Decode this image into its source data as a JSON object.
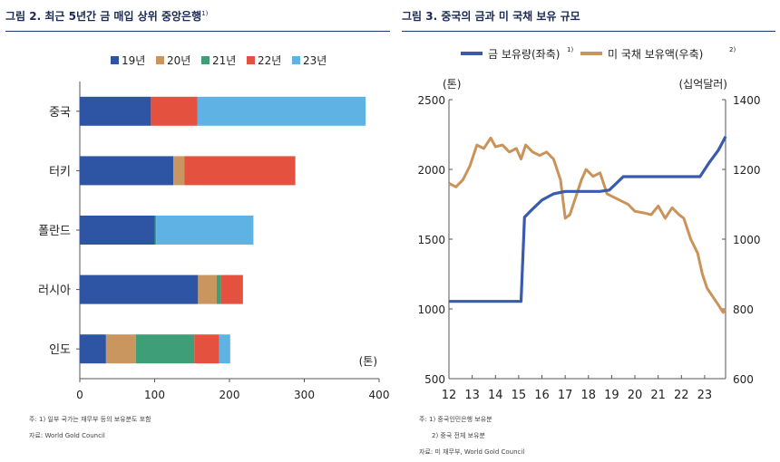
{
  "colors": {
    "bar_series": [
      "#2e55a3",
      "#c8965e",
      "#3e9e78",
      "#e4513f",
      "#5eb3e4"
    ],
    "gold_line": "#3a5ab0",
    "treasury_line": "#c9935a",
    "title": "#1a2a55"
  },
  "left": {
    "title": "그림 2. 최근 5년간 금 매입 상위 중앙은행",
    "title_sup": "1)",
    "unit": "(톤)",
    "notes": [
      "주: 1) 일부 국가는 재무부 등의 보유분도 포함",
      "자료: World Gold Council"
    ]
  },
  "right": {
    "title": "그림 3. 중국의 금과 미 국채 보유 규모",
    "left_unit": "(톤)",
    "right_unit": "(십억달러)",
    "notes": [
      "주: 1) 중국인민은행 보유분",
      "2) 중국 전체 보유분",
      "자료: 미 재무부, World Gold Council"
    ]
  },
  "chart_data": [
    {
      "type": "bar",
      "orientation": "horizontal",
      "stacked": true,
      "categories": [
        "중국",
        "터키",
        "폴란드",
        "러시아",
        "인도"
      ],
      "series": [
        {
          "name": "19년",
          "values": [
            95,
            125,
            100,
            158,
            35
          ]
        },
        {
          "name": "20년",
          "values": [
            0,
            15,
            0,
            25,
            40
          ]
        },
        {
          "name": "21년",
          "values": [
            0,
            0,
            2,
            5,
            78
          ]
        },
        {
          "name": "22년",
          "values": [
            62,
            148,
            0,
            30,
            33
          ]
        },
        {
          "name": "23년",
          "values": [
            225,
            0,
            130,
            0,
            15
          ]
        }
      ],
      "xlim": [
        0,
        400
      ],
      "xticks": [
        0,
        100,
        200,
        300,
        400
      ],
      "legend_position": "top",
      "grid": false
    },
    {
      "type": "line",
      "x_ticks": [
        "12",
        "13",
        "14",
        "15",
        "16",
        "17",
        "18",
        "19",
        "20",
        "21",
        "22",
        "23"
      ],
      "x_range": [
        2012,
        2023.9
      ],
      "y_left": {
        "range": [
          500,
          2500
        ],
        "ticks": [
          500,
          1000,
          1500,
          2000,
          2500
        ]
      },
      "y_right": {
        "range": [
          600,
          1400
        ],
        "ticks": [
          600,
          800,
          1000,
          1200,
          1400
        ]
      },
      "legend_position": "top",
      "grid": false,
      "series": [
        {
          "name": "금 보유량(좌축)",
          "name_sup": "1)",
          "axis": "left",
          "x": [
            2012.0,
            2015.1,
            2015.25,
            2015.5,
            2016.0,
            2016.5,
            2017.0,
            2018.5,
            2018.9,
            2019.5,
            2020.0,
            2021.0,
            2022.0,
            2022.8,
            2023.2,
            2023.6,
            2023.9
          ],
          "y": [
            1054,
            1054,
            1658,
            1700,
            1780,
            1825,
            1842,
            1842,
            1852,
            1948,
            1948,
            1948,
            1948,
            1948,
            2050,
            2140,
            2235
          ]
        },
        {
          "name": "미 국채 보유액(우축)",
          "name_sup": "2)",
          "axis": "right",
          "x": [
            2012.0,
            2012.3,
            2012.6,
            2012.9,
            2013.2,
            2013.5,
            2013.8,
            2014.0,
            2014.3,
            2014.6,
            2014.9,
            2015.1,
            2015.3,
            2015.6,
            2015.9,
            2016.2,
            2016.5,
            2016.8,
            2017.0,
            2017.2,
            2017.4,
            2017.7,
            2017.9,
            2018.2,
            2018.5,
            2018.8,
            2019.1,
            2019.4,
            2019.7,
            2020.0,
            2020.4,
            2020.7,
            2021.0,
            2021.3,
            2021.6,
            2021.9,
            2022.1,
            2022.4,
            2022.7,
            2022.9,
            2023.1,
            2023.3,
            2023.6,
            2023.8,
            2023.9
          ],
          "y": [
            1160,
            1150,
            1170,
            1210,
            1270,
            1260,
            1290,
            1265,
            1270,
            1250,
            1260,
            1230,
            1270,
            1250,
            1240,
            1250,
            1230,
            1170,
            1060,
            1070,
            1110,
            1170,
            1200,
            1180,
            1190,
            1130,
            1120,
            1110,
            1100,
            1080,
            1075,
            1070,
            1095,
            1060,
            1090,
            1070,
            1060,
            1000,
            960,
            900,
            860,
            840,
            810,
            790,
            800
          ]
        }
      ]
    }
  ]
}
